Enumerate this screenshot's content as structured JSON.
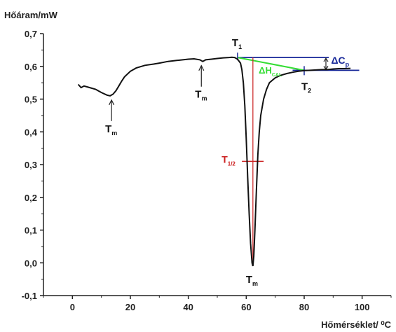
{
  "chart_data": {
    "type": "line",
    "ylabel": "Hőáram/mW",
    "xlabel": "Hőmérséklet/ ⁰C",
    "xlim": [
      -10,
      110
    ],
    "ylim": [
      -0.1,
      0.7
    ],
    "x_ticks": [
      0,
      20,
      40,
      60,
      80,
      100
    ],
    "y_ticks": [
      "-0,1",
      "0,0",
      "0,1",
      "0,2",
      "0,3",
      "0,4",
      "0,5",
      "0,6",
      "0,7"
    ],
    "y_tick_values": [
      -0.1,
      0.0,
      0.1,
      0.2,
      0.3,
      0.4,
      0.5,
      0.6,
      0.7
    ],
    "grid": false,
    "series": [
      {
        "x": [
          2,
          3,
          4,
          6,
          8,
          10,
          12,
          13,
          14,
          15,
          16,
          17,
          18,
          20,
          22,
          25,
          28,
          30,
          33,
          36,
          40,
          42,
          44,
          45,
          46,
          48,
          50,
          52,
          54,
          55,
          56,
          57,
          58,
          58.5,
          59,
          59.5,
          60,
          60.5,
          61,
          61.5,
          62,
          62.3,
          62.6,
          63,
          63.5,
          64,
          64.5,
          65,
          66,
          67,
          68,
          70,
          72,
          74,
          76,
          78,
          80,
          82,
          84,
          86,
          88,
          90,
          92,
          94,
          96
        ],
        "y": [
          0.545,
          0.535,
          0.54,
          0.535,
          0.53,
          0.52,
          0.512,
          0.51,
          0.515,
          0.525,
          0.54,
          0.555,
          0.568,
          0.585,
          0.595,
          0.603,
          0.607,
          0.61,
          0.615,
          0.618,
          0.622,
          0.623,
          0.62,
          0.615,
          0.62,
          0.622,
          0.624,
          0.626,
          0.627,
          0.628,
          0.627,
          0.622,
          0.61,
          0.59,
          0.55,
          0.48,
          0.38,
          0.26,
          0.15,
          0.06,
          0.0,
          -0.01,
          0.02,
          0.1,
          0.22,
          0.33,
          0.4,
          0.45,
          0.5,
          0.53,
          0.55,
          0.565,
          0.573,
          0.578,
          0.582,
          0.585,
          0.587,
          0.588,
          0.589,
          0.59,
          0.59,
          0.592,
          0.593,
          0.593,
          0.594
        ]
      }
    ],
    "annotations": {
      "Tm_left": {
        "label": "T",
        "sub": "m",
        "x": 13.5,
        "y": 0.51
      },
      "Tm_mid": {
        "label": "T",
        "sub": "m",
        "x": 44.5,
        "y": 0.615
      },
      "Tm_peak": {
        "label": "T",
        "sub": "m",
        "x": 62.3,
        "y": -0.01
      },
      "T1": {
        "label": "T",
        "sub": "1",
        "x": 57,
        "y": 0.627
      },
      "T2": {
        "label": "T",
        "sub": "2",
        "x": 80,
        "y": 0.588
      },
      "Thalf": {
        "label": "T",
        "sub": "1/2",
        "x": 62.3,
        "y": 0.31
      },
      "dH": {
        "label": "ΔH",
        "sub": "CAL"
      },
      "dCp": {
        "label": "ΔC",
        "sub": "p"
      }
    },
    "colors": {
      "curve": "#111111",
      "baseline": "#1a2a9a",
      "tangent": "#33dd33",
      "half": "#cc2222",
      "axis": "#222222"
    }
  }
}
